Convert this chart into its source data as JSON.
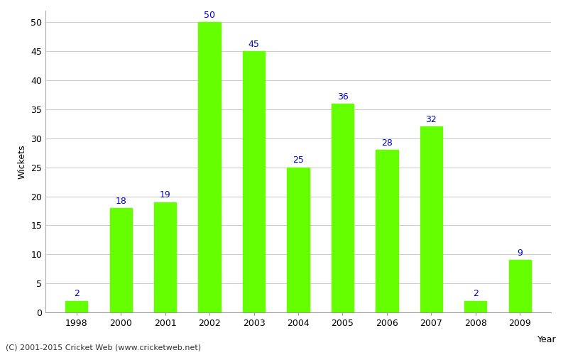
{
  "years": [
    "1998",
    "2000",
    "2001",
    "2002",
    "2003",
    "2004",
    "2005",
    "2006",
    "2007",
    "2008",
    "2009"
  ],
  "wickets": [
    2,
    18,
    19,
    50,
    45,
    25,
    36,
    28,
    32,
    2,
    9
  ],
  "bar_color": "#66ff00",
  "bar_edge_color": "#66ff00",
  "label_color": "#0000cc",
  "xlabel": "Year",
  "ylabel": "Wickets",
  "ylim": [
    0,
    52
  ],
  "yticks": [
    0,
    5,
    10,
    15,
    20,
    25,
    30,
    35,
    40,
    45,
    50
  ],
  "grid_color": "#cccccc",
  "bg_color": "#ffffff",
  "footnote": "(C) 2001-2015 Cricket Web (www.cricketweb.net)",
  "label_fontsize": 9,
  "tick_fontsize": 9,
  "annotation_fontsize": 9,
  "bar_width": 0.5
}
